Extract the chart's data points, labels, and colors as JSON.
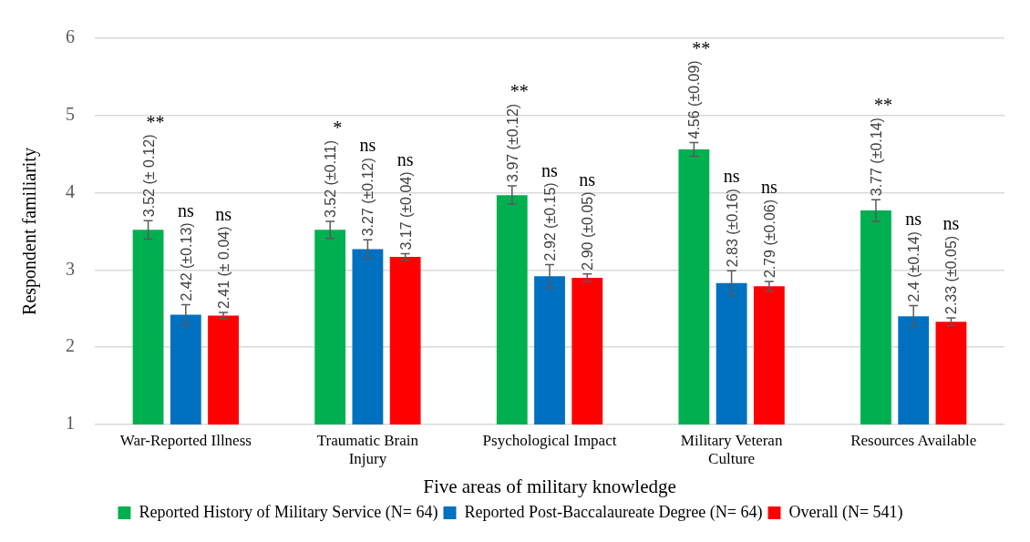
{
  "chart_data": {
    "type": "bar",
    "xlabel": "Five areas of military knowledge",
    "ylabel": "Respondent familiarity",
    "categories": [
      "War-Reported Illness",
      "Traumatic Brain Injury",
      "Psychological Impact",
      "Military Veteran Culture",
      "Resources Available"
    ],
    "series": [
      {
        "name": "Reported History of Military Service (N= 64)",
        "color": "#00b050",
        "values": [
          3.52,
          3.52,
          3.97,
          4.56,
          3.77
        ],
        "errors": [
          0.12,
          0.11,
          0.12,
          0.09,
          0.14
        ],
        "value_labels": [
          "3.52 (± 0.12)",
          "3.52 (±0.11)",
          "3.97 (±0.12)",
          "4.56 (±0.09)",
          "3.77 (±0.14)"
        ]
      },
      {
        "name": "Reported Post-Baccalaureate Degree (N= 64)",
        "color": "#0070c0",
        "values": [
          2.42,
          3.27,
          2.92,
          2.83,
          2.4
        ],
        "errors": [
          0.13,
          0.12,
          0.15,
          0.16,
          0.14
        ],
        "value_labels": [
          "2.42 (±0.13)",
          "3.27 (±0.12)",
          "2.92 (±0.15)",
          "2.83 (±0.16)",
          "2.4 (±0.14)"
        ]
      },
      {
        "name": "Overall (N= 541)",
        "color": "#ff0000",
        "values": [
          2.41,
          3.17,
          2.9,
          2.79,
          2.33
        ],
        "errors": [
          0.04,
          0.04,
          0.05,
          0.06,
          0.05
        ],
        "value_labels": [
          "2.41 (± 0.04)",
          "3.17 (±0.04)",
          "2.90 (±0.05)",
          "2.79 (±0.06)",
          "2.33 (±0.05)"
        ]
      }
    ],
    "annotations": [
      "**",
      "ns",
      "ns",
      "*",
      "ns",
      "ns",
      "**",
      "ns",
      "ns",
      "**",
      "ns",
      "ns",
      "**",
      "ns",
      "ns"
    ],
    "ylim": [
      1,
      6
    ],
    "yticks": [
      1,
      2,
      3,
      4,
      5,
      6
    ],
    "grid": "y",
    "legend": "bottom"
  }
}
